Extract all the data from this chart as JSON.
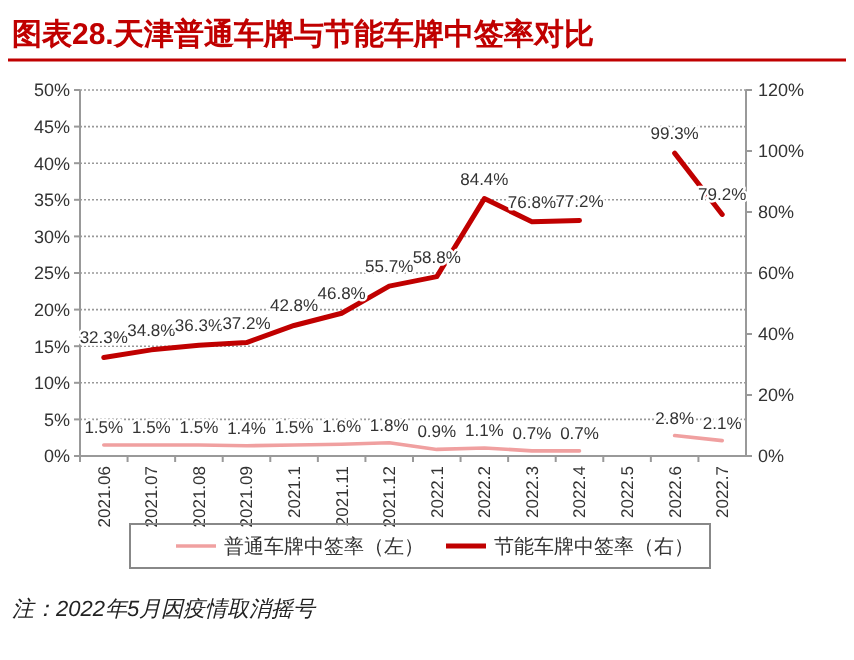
{
  "chart_data": {
    "type": "line",
    "title": "图表28.天津普通车牌与节能车牌中签率对比",
    "categories": [
      "2021.06",
      "2021.07",
      "2021.08",
      "2021.09",
      "2021.1",
      "2021.11",
      "2021.12",
      "2022.1",
      "2022.2",
      "2022.3",
      "2022.4",
      "2022.5",
      "2022.6",
      "2022.7"
    ],
    "series": [
      {
        "name": "普通车牌中签率（左）",
        "color": "#f0a0a0",
        "values": [
          1.5,
          1.5,
          1.5,
          1.4,
          1.5,
          1.6,
          1.8,
          0.9,
          1.1,
          0.7,
          0.7,
          null,
          2.8,
          2.1
        ],
        "value_labels": [
          "1.5%",
          "1.5%",
          "1.5%",
          "1.4%",
          "1.5%",
          "1.6%",
          "1.8%",
          "0.9%",
          "1.1%",
          "0.7%",
          "0.7%",
          null,
          "2.8%",
          "2.1%"
        ]
      },
      {
        "name": "节能车牌中签率（右）",
        "color": "#c00000",
        "axis": "y2",
        "values": [
          32.3,
          34.8,
          36.3,
          37.2,
          42.8,
          46.8,
          55.7,
          58.8,
          84.4,
          76.8,
          77.2,
          null,
          99.3,
          79.2
        ],
        "value_labels": [
          "32.3%",
          "34.8%",
          "36.3%",
          "37.2%",
          "42.8%",
          "46.8%",
          "55.7%",
          "58.8%",
          "84.4%",
          "76.8%",
          "77.2%",
          null,
          "99.3%",
          "79.2%"
        ]
      }
    ],
    "ylim": [
      0,
      50
    ],
    "yticks": [
      {
        "value": 0,
        "label": "0%"
      },
      {
        "value": 5,
        "label": "5%"
      },
      {
        "value": 10,
        "label": "10%"
      },
      {
        "value": 15,
        "label": "15%"
      },
      {
        "value": 20,
        "label": "20%"
      },
      {
        "value": 25,
        "label": "25%"
      },
      {
        "value": 30,
        "label": "30%"
      },
      {
        "value": 35,
        "label": "35%"
      },
      {
        "value": 40,
        "label": "40%"
      },
      {
        "value": 45,
        "label": "45%"
      },
      {
        "value": 50,
        "label": "50%"
      }
    ],
    "y2lim": [
      0,
      120
    ],
    "y2ticks": [
      {
        "value": 0,
        "label": "0%"
      },
      {
        "value": 20,
        "label": "20%"
      },
      {
        "value": 40,
        "label": "40%"
      },
      {
        "value": 60,
        "label": "60%"
      },
      {
        "value": 80,
        "label": "80%"
      },
      {
        "value": 100,
        "label": "100%"
      },
      {
        "value": 120,
        "label": "120%"
      }
    ],
    "grid": "y",
    "legend": "bottom",
    "marker": "none",
    "line_style": "solid",
    "annotations": [
      "注：2022年5月因疫情取消摇号"
    ]
  }
}
